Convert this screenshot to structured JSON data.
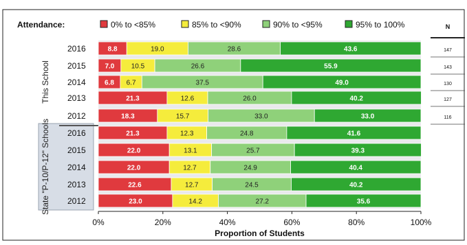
{
  "chart_data": {
    "type": "bar",
    "orientation": "horizontal",
    "stacked": true,
    "legend": {
      "title": "Attendance:",
      "placement": "top"
    },
    "xlabel": "Proportion of Students",
    "xlim": [
      0,
      100
    ],
    "xticks": [
      "0%",
      "20%",
      "40%",
      "60%",
      "80%",
      "100%"
    ],
    "n_header": "N",
    "groups": [
      {
        "label": "This School",
        "categories": [
          "2016",
          "2015",
          "2014",
          "2013",
          "2012"
        ]
      },
      {
        "label": "State \"P-10/P-12\" Schools",
        "categories": [
          "2016",
          "2015",
          "2014",
          "2013",
          "2012"
        ]
      }
    ],
    "series": [
      {
        "name": "0% to <85%",
        "color": "#e03a3e",
        "values": [
          8.8,
          7.0,
          6.8,
          21.3,
          18.3,
          21.3,
          22.0,
          22.0,
          22.6,
          23.0
        ],
        "labels": [
          "8.8",
          "7.0",
          "6.8",
          "21.3",
          "18.3",
          "21.3",
          "22.0",
          "22.0",
          "22.6",
          "23.0"
        ]
      },
      {
        "name": "85% to <90%",
        "color": "#f5ec3c",
        "values": [
          19.0,
          10.5,
          6.7,
          12.6,
          15.7,
          12.3,
          13.1,
          12.7,
          12.7,
          14.2
        ],
        "labels": [
          "19.0",
          "10.5",
          "6.7",
          "12.6",
          "15.7",
          "12.3",
          "13.1",
          "12.7",
          "12.7",
          "14.2"
        ]
      },
      {
        "name": "90% to <95%",
        "color": "#8fd17a",
        "values": [
          28.6,
          26.6,
          37.5,
          26.0,
          33.0,
          24.8,
          25.7,
          24.9,
          24.5,
          27.2
        ],
        "labels": [
          "28.6",
          "26.6",
          "37.5",
          "26.0",
          "33.0",
          "24.8",
          "25.7",
          "24.9",
          "24.5",
          "27.2"
        ]
      },
      {
        "name": "95% to 100%",
        "color": "#2fa832",
        "values": [
          43.6,
          55.9,
          49.0,
          40.2,
          33.0,
          41.6,
          39.3,
          40.4,
          40.2,
          35.6
        ],
        "labels": [
          "43.6",
          "55.9",
          "49.0",
          "40.2",
          "33.0",
          "41.6",
          "39.3",
          "40.4",
          "40.2",
          "35.6"
        ]
      }
    ],
    "n_values": [
      "147",
      "143",
      "130",
      "127",
      "116"
    ]
  }
}
